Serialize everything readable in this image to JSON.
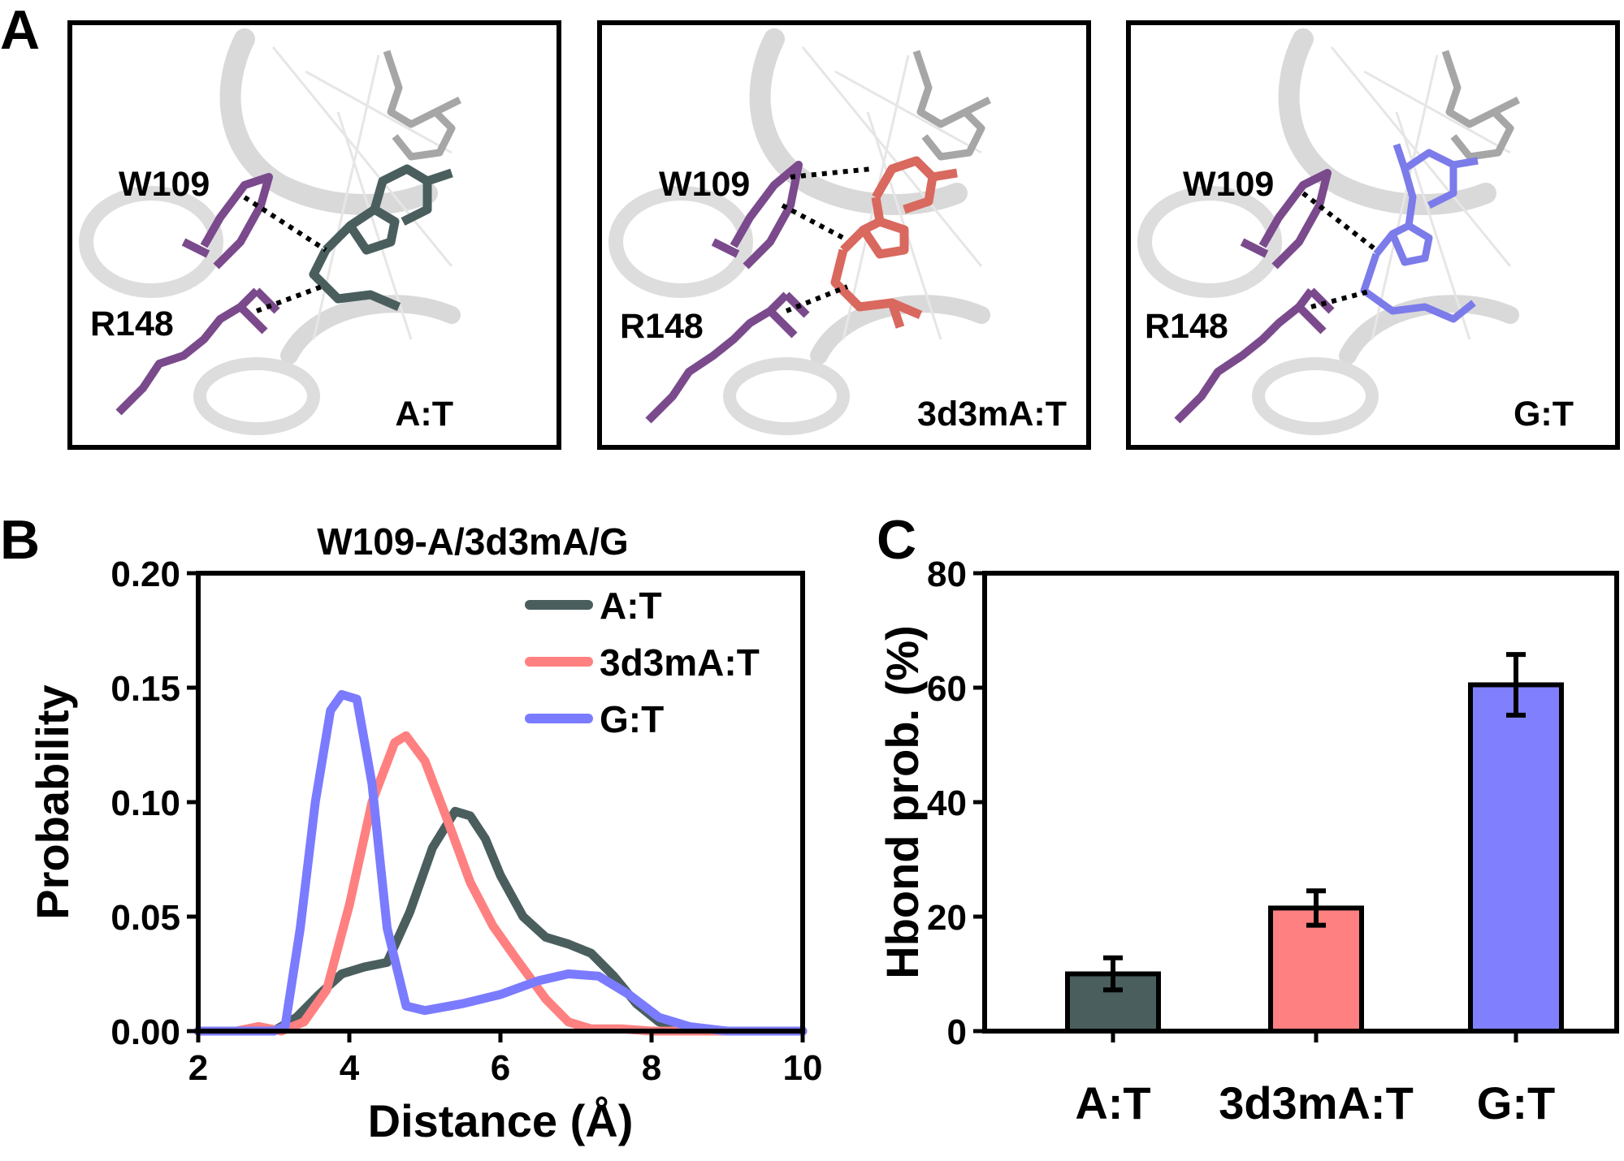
{
  "panel_a": {
    "letter": "A",
    "structures": [
      {
        "label": "A:T",
        "residue_top": "W109",
        "residue_bottom": "R148",
        "ligand_color": "#4a5e5e"
      },
      {
        "label": "3d3mA:T",
        "residue_top": "W109",
        "residue_bottom": "R148",
        "ligand_color": "#d9685e"
      },
      {
        "label": "G:T",
        "residue_top": "W109",
        "residue_bottom": "R148",
        "ligand_color": "#7b7bea"
      }
    ],
    "residue_color": "#7a4a8c"
  },
  "chart_data": [
    {
      "panel": "B",
      "type": "line",
      "title": "W109-A/3d3mA/G",
      "xlabel": "Distance (Å)",
      "ylabel": "Probability",
      "xlim": [
        2,
        10
      ],
      "ylim": [
        0,
        0.2
      ],
      "xticks": [
        "2",
        "4",
        "6",
        "8",
        "10"
      ],
      "yticks": [
        "0.00",
        "0.05",
        "0.10",
        "0.15",
        "0.20"
      ],
      "legend_position": "top-right",
      "series": [
        {
          "name": "A:T",
          "color": "#4a5e5e",
          "x": [
            2.0,
            3.0,
            3.3,
            3.6,
            3.9,
            4.2,
            4.5,
            4.8,
            5.1,
            5.4,
            5.6,
            5.8,
            6.0,
            6.3,
            6.6,
            6.9,
            7.2,
            7.5,
            7.8,
            8.1,
            8.5,
            9.0,
            10.0
          ],
          "y": [
            0,
            0,
            0.006,
            0.016,
            0.025,
            0.028,
            0.03,
            0.052,
            0.08,
            0.096,
            0.094,
            0.084,
            0.068,
            0.05,
            0.041,
            0.038,
            0.034,
            0.024,
            0.012,
            0.004,
            0.001,
            0,
            0
          ]
        },
        {
          "name": "3d3mA:T",
          "color": "#ff8080",
          "x": [
            2.0,
            2.5,
            2.8,
            3.1,
            3.4,
            3.7,
            4.0,
            4.3,
            4.6,
            4.75,
            5.0,
            5.3,
            5.6,
            5.9,
            6.2,
            6.6,
            6.9,
            7.2,
            7.6,
            8.0,
            10.0
          ],
          "y": [
            0,
            0,
            0.002,
            0,
            0.004,
            0.018,
            0.055,
            0.1,
            0.126,
            0.129,
            0.118,
            0.092,
            0.065,
            0.046,
            0.032,
            0.014,
            0.004,
            0.001,
            0.001,
            0,
            0
          ]
        },
        {
          "name": "G:T",
          "color": "#7b7bff",
          "x": [
            2.0,
            3.0,
            3.15,
            3.35,
            3.55,
            3.75,
            3.9,
            4.1,
            4.3,
            4.5,
            4.75,
            5.0,
            5.5,
            6.0,
            6.5,
            6.9,
            7.3,
            7.7,
            8.1,
            8.5,
            9.0,
            10.0
          ],
          "y": [
            0,
            0,
            0.002,
            0.045,
            0.1,
            0.14,
            0.147,
            0.145,
            0.108,
            0.045,
            0.011,
            0.009,
            0.012,
            0.016,
            0.022,
            0.025,
            0.024,
            0.016,
            0.006,
            0.002,
            0,
            0
          ]
        }
      ]
    },
    {
      "panel": "C",
      "type": "bar",
      "categories": [
        "A:T",
        "3d3mA:T",
        "G:T"
      ],
      "values": [
        10,
        21.5,
        60.5
      ],
      "errors": [
        2.8,
        3.0,
        5.3
      ],
      "colors": [
        "#4a5e5e",
        "#ff8080",
        "#8080ff"
      ],
      "ylabel": "Hbond prob. (%)",
      "xlabel": "",
      "ylim": [
        0,
        80
      ],
      "yticks": [
        "0",
        "20",
        "40",
        "60",
        "80"
      ]
    }
  ]
}
